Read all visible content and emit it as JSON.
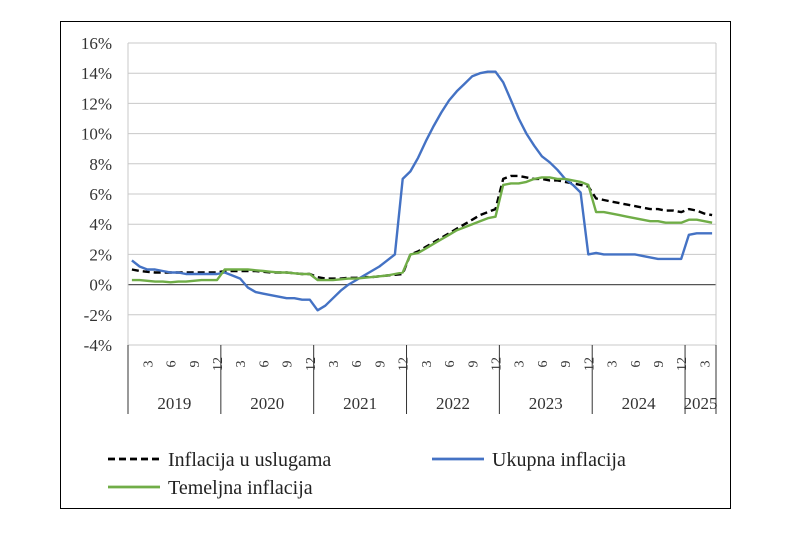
{
  "chart_data": {
    "type": "line",
    "title": "",
    "xlabel": "",
    "ylabel": "",
    "ylim": [
      -4,
      16
    ],
    "y_ticks": [
      "16%",
      "14%",
      "12%",
      "10%",
      "8%",
      "6%",
      "4%",
      "2%",
      "0%",
      "-2%",
      "-4%"
    ],
    "y_tick_values": [
      16,
      14,
      12,
      10,
      8,
      6,
      4,
      2,
      0,
      -2,
      -4
    ],
    "x_start": "2019-01",
    "x_end": "2025-04",
    "grid": "horizontal",
    "legend_position": "bottom",
    "month_ticks": [
      "3",
      "6",
      "9",
      "12"
    ],
    "years": [
      "2019",
      "2020",
      "2021",
      "2022",
      "2023",
      "2024",
      "2025"
    ],
    "series": [
      {
        "name": "Inflacija u uslugama",
        "color": "#000000",
        "dash": "dashed",
        "x": [
          "2019-01",
          "2019-02",
          "2019-03",
          "2019-04",
          "2019-05",
          "2019-06",
          "2019-07",
          "2019-08",
          "2019-09",
          "2019-10",
          "2019-11",
          "2019-12",
          "2020-01",
          "2020-02",
          "2020-03",
          "2020-04",
          "2020-05",
          "2020-06",
          "2020-07",
          "2020-08",
          "2020-09",
          "2020-10",
          "2020-11",
          "2020-12",
          "2021-01",
          "2021-02",
          "2021-03",
          "2021-04",
          "2021-05",
          "2021-06",
          "2021-07",
          "2021-08",
          "2021-09",
          "2021-10",
          "2021-11",
          "2021-12",
          "2022-01",
          "2022-02",
          "2022-03",
          "2022-04",
          "2022-05",
          "2022-06",
          "2022-07",
          "2022-08",
          "2022-09",
          "2022-10",
          "2022-11",
          "2022-12",
          "2023-01",
          "2023-02",
          "2023-03",
          "2023-04",
          "2023-05",
          "2023-06",
          "2023-07",
          "2023-08",
          "2023-09",
          "2023-10",
          "2023-11",
          "2023-12",
          "2024-01",
          "2024-02",
          "2024-03",
          "2024-04",
          "2024-05",
          "2024-06",
          "2024-07",
          "2024-08",
          "2024-09",
          "2024-10",
          "2024-11",
          "2024-12",
          "2025-01",
          "2025-02",
          "2025-03",
          "2025-04"
        ],
        "values": [
          1.0,
          0.9,
          0.85,
          0.8,
          0.8,
          0.8,
          0.8,
          0.8,
          0.8,
          0.8,
          0.8,
          0.8,
          0.9,
          0.9,
          0.9,
          0.9,
          0.9,
          0.85,
          0.8,
          0.8,
          0.8,
          0.75,
          0.7,
          0.7,
          0.5,
          0.4,
          0.4,
          0.4,
          0.45,
          0.45,
          0.5,
          0.5,
          0.55,
          0.6,
          0.65,
          0.7,
          2.0,
          2.2,
          2.5,
          2.8,
          3.1,
          3.4,
          3.7,
          4.0,
          4.3,
          4.6,
          4.8,
          5.0,
          7.0,
          7.2,
          7.2,
          7.1,
          7.0,
          7.0,
          6.9,
          6.9,
          6.8,
          6.7,
          6.6,
          6.5,
          5.7,
          5.6,
          5.5,
          5.4,
          5.3,
          5.2,
          5.1,
          5.0,
          5.0,
          4.9,
          4.9,
          4.8,
          5.0,
          4.9,
          4.7,
          4.6
        ]
      },
      {
        "name": "Ukupna inflacija",
        "color": "#4472c4",
        "dash": "solid",
        "x": [
          "2019-01",
          "2019-02",
          "2019-03",
          "2019-04",
          "2019-05",
          "2019-06",
          "2019-07",
          "2019-08",
          "2019-09",
          "2019-10",
          "2019-11",
          "2019-12",
          "2020-01",
          "2020-02",
          "2020-03",
          "2020-04",
          "2020-05",
          "2020-06",
          "2020-07",
          "2020-08",
          "2020-09",
          "2020-10",
          "2020-11",
          "2020-12",
          "2021-01",
          "2021-02",
          "2021-03",
          "2021-04",
          "2021-05",
          "2021-06",
          "2021-07",
          "2021-08",
          "2021-09",
          "2021-10",
          "2021-11",
          "2021-12",
          "2022-01",
          "2022-02",
          "2022-03",
          "2022-04",
          "2022-05",
          "2022-06",
          "2022-07",
          "2022-08",
          "2022-09",
          "2022-10",
          "2022-11",
          "2022-12",
          "2023-01",
          "2023-02",
          "2023-03",
          "2023-04",
          "2023-05",
          "2023-06",
          "2023-07",
          "2023-08",
          "2023-09",
          "2023-10",
          "2023-11",
          "2023-12",
          "2024-01",
          "2024-02",
          "2024-03",
          "2024-04",
          "2024-05",
          "2024-06",
          "2024-07",
          "2024-08",
          "2024-09",
          "2024-10",
          "2024-11",
          "2024-12",
          "2025-01",
          "2025-02",
          "2025-03",
          "2025-04"
        ],
        "values": [
          1.6,
          1.2,
          1.0,
          1.0,
          0.9,
          0.8,
          0.8,
          0.7,
          0.7,
          0.7,
          0.7,
          0.7,
          0.8,
          0.6,
          0.4,
          -0.2,
          -0.5,
          -0.6,
          -0.7,
          -0.8,
          -0.9,
          -0.9,
          -1.0,
          -1.0,
          -1.7,
          -1.4,
          -0.9,
          -0.4,
          0.0,
          0.3,
          0.6,
          0.9,
          1.2,
          1.6,
          2.0,
          7.0,
          7.5,
          8.4,
          9.5,
          10.5,
          11.4,
          12.2,
          12.8,
          13.3,
          13.8,
          14.0,
          14.1,
          14.1,
          13.4,
          12.2,
          11.0,
          10.0,
          9.2,
          8.5,
          8.1,
          7.6,
          7.0,
          6.6,
          6.1,
          2.0,
          2.1,
          2.0,
          2.0,
          2.0,
          2.0,
          2.0,
          1.9,
          1.8,
          1.7,
          1.7,
          1.7,
          1.7,
          3.3,
          3.4,
          3.4,
          3.4
        ]
      },
      {
        "name": "Temeljna inflacija",
        "color": "#70ad47",
        "dash": "solid",
        "x": [
          "2019-01",
          "2019-02",
          "2019-03",
          "2019-04",
          "2019-05",
          "2019-06",
          "2019-07",
          "2019-08",
          "2019-09",
          "2019-10",
          "2019-11",
          "2019-12",
          "2020-01",
          "2020-02",
          "2020-03",
          "2020-04",
          "2020-05",
          "2020-06",
          "2020-07",
          "2020-08",
          "2020-09",
          "2020-10",
          "2020-11",
          "2020-12",
          "2021-01",
          "2021-02",
          "2021-03",
          "2021-04",
          "2021-05",
          "2021-06",
          "2021-07",
          "2021-08",
          "2021-09",
          "2021-10",
          "2021-11",
          "2021-12",
          "2022-01",
          "2022-02",
          "2022-03",
          "2022-04",
          "2022-05",
          "2022-06",
          "2022-07",
          "2022-08",
          "2022-09",
          "2022-10",
          "2022-11",
          "2022-12",
          "2023-01",
          "2023-02",
          "2023-03",
          "2023-04",
          "2023-05",
          "2023-06",
          "2023-07",
          "2023-08",
          "2023-09",
          "2023-10",
          "2023-11",
          "2023-12",
          "2024-01",
          "2024-02",
          "2024-03",
          "2024-04",
          "2024-05",
          "2024-06",
          "2024-07",
          "2024-08",
          "2024-09",
          "2024-10",
          "2024-11",
          "2024-12",
          "2025-01",
          "2025-02",
          "2025-03",
          "2025-04"
        ],
        "values": [
          0.3,
          0.3,
          0.25,
          0.2,
          0.2,
          0.15,
          0.2,
          0.2,
          0.25,
          0.3,
          0.3,
          0.3,
          1.0,
          1.0,
          1.0,
          1.0,
          0.95,
          0.9,
          0.85,
          0.8,
          0.8,
          0.75,
          0.7,
          0.7,
          0.3,
          0.3,
          0.3,
          0.35,
          0.4,
          0.4,
          0.45,
          0.5,
          0.55,
          0.6,
          0.7,
          0.8,
          2.0,
          2.1,
          2.4,
          2.7,
          3.0,
          3.3,
          3.6,
          3.8,
          4.0,
          4.2,
          4.4,
          4.5,
          6.6,
          6.7,
          6.7,
          6.8,
          7.0,
          7.1,
          7.1,
          7.0,
          7.0,
          6.9,
          6.8,
          6.6,
          4.8,
          4.8,
          4.7,
          4.6,
          4.5,
          4.4,
          4.3,
          4.2,
          4.2,
          4.1,
          4.1,
          4.1,
          4.3,
          4.3,
          4.2,
          4.1
        ]
      }
    ]
  }
}
